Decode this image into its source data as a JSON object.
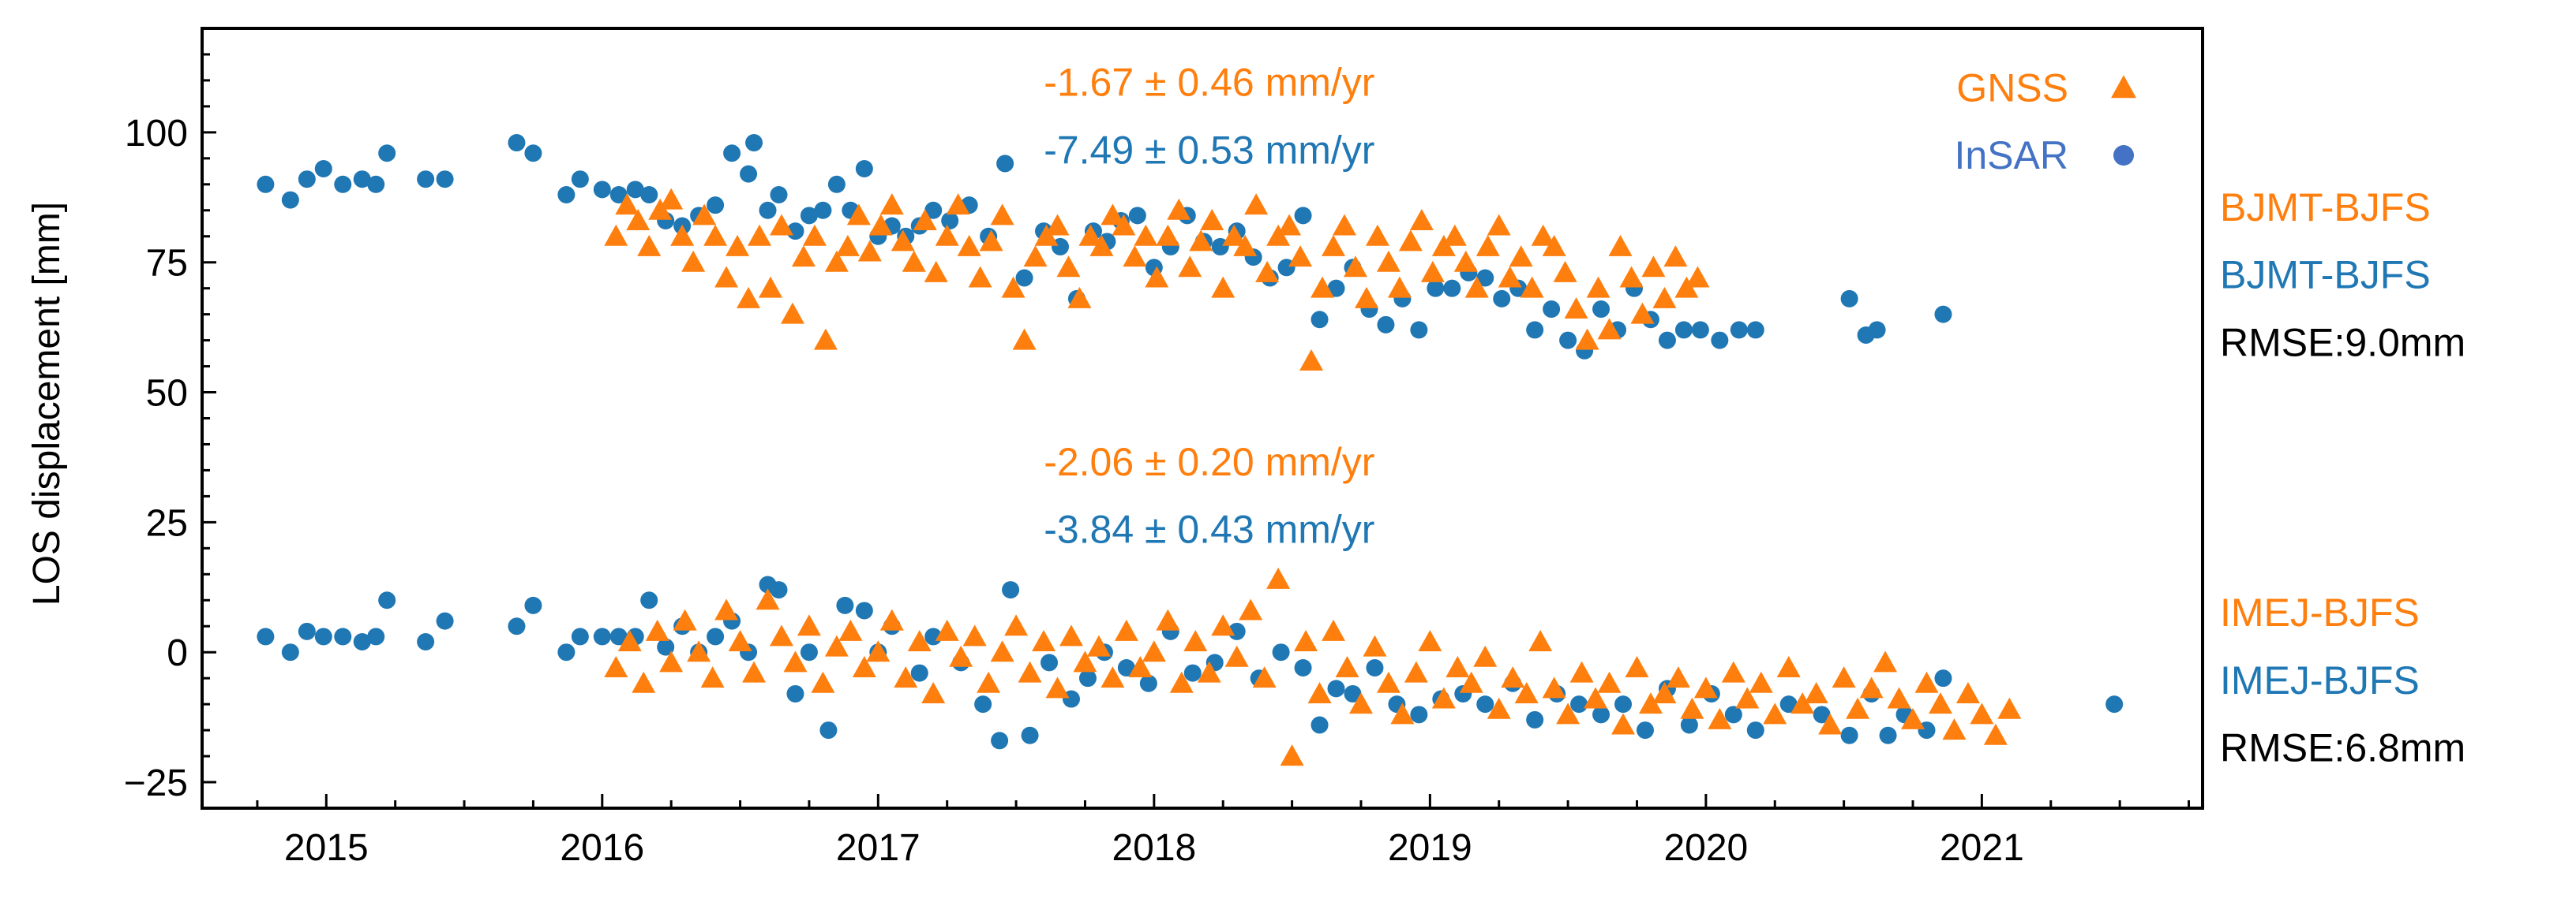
{
  "chart_data": {
    "type": "scatter",
    "title": "",
    "xlabel": "",
    "ylabel": "LOS displacement [mm]",
    "xlim": [
      2014.55,
      2021.8
    ],
    "ylim": [
      -30,
      120
    ],
    "xticks": [
      2015,
      2016,
      2017,
      2018,
      2019,
      2020,
      2021
    ],
    "xtick_labels": [
      "2015",
      "2016",
      "2017",
      "2018",
      "2019",
      "2020",
      "2021"
    ],
    "yticks": [
      -25,
      0,
      25,
      50,
      75,
      100
    ],
    "ytick_labels": [
      "−25",
      "0",
      "25",
      "50",
      "75",
      "100"
    ],
    "grid": false,
    "legend": {
      "placement": "top-right",
      "entries": [
        {
          "label": "GNSS",
          "marker": "triangle",
          "color": "#ff7f0e"
        },
        {
          "label": "InSAR",
          "marker": "circle",
          "color": "#4472c4"
        }
      ]
    },
    "rate_labels": [
      {
        "text": "-1.67 ± 0.46 mm/yr",
        "color": "#ff7f0e",
        "x": 2018.8,
        "y": 107
      },
      {
        "text": "-7.49 ± 0.53 mm/yr",
        "color": "#1f77b4",
        "x": 2018.8,
        "y": 94
      },
      {
        "text": "-2.06 ± 0.20 mm/yr",
        "color": "#ff7f0e",
        "x": 2018.8,
        "y": 34
      },
      {
        "text": "-3.84 ± 0.43 mm/yr",
        "color": "#1f77b4",
        "x": 2018.8,
        "y": 21
      }
    ],
    "side_labels": [
      {
        "text": "BJMT-BJFS",
        "color": "#ff7f0e",
        "y": 83
      },
      {
        "text": "BJMT-BJFS",
        "color": "#1f77b4",
        "y": 70
      },
      {
        "text": "RMSE:9.0mm",
        "color": "#000000",
        "y": 57
      },
      {
        "text": "IMEJ-BJFS",
        "color": "#ff7f0e",
        "y": 5
      },
      {
        "text": "IMEJ-BJFS",
        "color": "#1f77b4",
        "y": -8
      },
      {
        "text": "RMSE:6.8mm",
        "color": "#000000",
        "y": -21
      }
    ],
    "series": [
      {
        "name": "BJMT-BJFS InSAR",
        "marker": "circle",
        "color": "#1f77b4",
        "x": [
          2014.78,
          2014.87,
          2014.93,
          2014.99,
          2015.06,
          2015.13,
          2015.18,
          2015.22,
          2015.36,
          2015.43,
          2015.69,
          2015.75,
          2015.87,
          2015.92,
          2016.0,
          2016.06,
          2016.12,
          2016.17,
          2016.23,
          2016.29,
          2016.35,
          2016.41,
          2016.47,
          2016.53,
          2016.55,
          2016.6,
          2016.64,
          2016.7,
          2016.75,
          2016.8,
          2016.85,
          2016.9,
          2016.95,
          2017.0,
          2017.05,
          2017.1,
          2017.15,
          2017.2,
          2017.26,
          2017.33,
          2017.4,
          2017.46,
          2017.53,
          2017.6,
          2017.66,
          2017.72,
          2017.78,
          2017.83,
          2017.88,
          2017.94,
          2018.0,
          2018.06,
          2018.12,
          2018.18,
          2018.24,
          2018.3,
          2018.36,
          2018.42,
          2018.48,
          2018.54,
          2018.6,
          2018.66,
          2018.72,
          2018.78,
          2018.84,
          2018.9,
          2018.96,
          2019.02,
          2019.08,
          2019.14,
          2019.2,
          2019.26,
          2019.32,
          2019.38,
          2019.44,
          2019.5,
          2019.56,
          2019.62,
          2019.68,
          2019.74,
          2019.8,
          2019.86,
          2019.92,
          2019.98,
          2020.05,
          2020.12,
          2020.18,
          2020.52,
          2020.58,
          2020.62,
          2020.86
        ],
        "y": [
          90,
          87,
          91,
          93,
          90,
          91,
          90,
          96,
          91,
          91,
          98,
          96,
          88,
          91,
          89,
          88,
          89,
          88,
          83,
          82,
          84,
          86,
          96,
          92,
          98,
          85,
          88,
          81,
          84,
          85,
          90,
          85,
          93,
          80,
          82,
          80,
          82,
          85,
          83,
          86,
          80,
          94,
          72,
          81,
          78,
          68,
          81,
          79,
          83,
          84,
          74,
          78,
          84,
          79,
          78,
          81,
          76,
          72,
          74,
          84,
          64,
          70,
          74,
          66,
          63,
          68,
          62,
          70,
          70,
          73,
          72,
          68,
          70,
          62,
          66,
          60,
          58,
          66,
          62,
          70,
          64,
          60,
          62,
          62,
          60,
          62,
          62,
          68,
          61,
          62,
          65
        ]
      },
      {
        "name": "IMEJ-BJFS InSAR",
        "marker": "circle",
        "color": "#1f77b4",
        "x": [
          2014.78,
          2014.87,
          2014.93,
          2014.99,
          2015.06,
          2015.13,
          2015.18,
          2015.22,
          2015.36,
          2015.43,
          2015.69,
          2015.75,
          2015.87,
          2015.92,
          2016.0,
          2016.06,
          2016.12,
          2016.17,
          2016.23,
          2016.29,
          2016.35,
          2016.41,
          2016.47,
          2016.53,
          2016.6,
          2016.64,
          2016.7,
          2016.75,
          2016.82,
          2016.88,
          2016.95,
          2017.0,
          2017.05,
          2017.15,
          2017.2,
          2017.3,
          2017.38,
          2017.44,
          2017.48,
          2017.55,
          2017.62,
          2017.7,
          2017.76,
          2017.82,
          2017.9,
          2017.98,
          2018.06,
          2018.14,
          2018.22,
          2018.3,
          2018.38,
          2018.46,
          2018.54,
          2018.6,
          2018.66,
          2018.72,
          2018.8,
          2018.88,
          2018.96,
          2019.04,
          2019.12,
          2019.2,
          2019.3,
          2019.38,
          2019.46,
          2019.54,
          2019.62,
          2019.7,
          2019.78,
          2019.86,
          2019.94,
          2020.02,
          2020.1,
          2020.18,
          2020.3,
          2020.42,
          2020.52,
          2020.6,
          2020.66,
          2020.72,
          2020.8,
          2020.86,
          2021.48
        ],
        "y": [
          3,
          0,
          4,
          3,
          3,
          2,
          3,
          10,
          2,
          6,
          5,
          9,
          0,
          3,
          3,
          3,
          3,
          10,
          1,
          5,
          0,
          3,
          6,
          0,
          13,
          12,
          -8,
          0,
          -15,
          9,
          8,
          0,
          5,
          -4,
          3,
          -2,
          -10,
          -17,
          12,
          -16,
          -2,
          -9,
          -5,
          0,
          -3,
          -6,
          4,
          -4,
          -2,
          4,
          -5,
          0,
          -3,
          -14,
          -7,
          -8,
          -3,
          -10,
          -12,
          -9,
          -8,
          -10,
          -6,
          -13,
          -8,
          -10,
          -12,
          -10,
          -15,
          -7,
          -14,
          -8,
          -12,
          -15,
          -10,
          -12,
          -16,
          -8,
          -16,
          -12,
          -15,
          -5,
          -10
        ]
      },
      {
        "name": "BJMT-BJFS GNSS",
        "marker": "triangle",
        "color": "#ff7f0e",
        "x": [
          2016.05,
          2016.09,
          2016.13,
          2016.17,
          2016.21,
          2016.25,
          2016.29,
          2016.33,
          2016.37,
          2016.41,
          2016.45,
          2016.49,
          2016.53,
          2016.57,
          2016.61,
          2016.65,
          2016.69,
          2016.73,
          2016.77,
          2016.81,
          2016.85,
          2016.89,
          2016.93,
          2016.97,
          2017.01,
          2017.05,
          2017.09,
          2017.13,
          2017.17,
          2017.21,
          2017.25,
          2017.29,
          2017.33,
          2017.37,
          2017.41,
          2017.45,
          2017.49,
          2017.53,
          2017.57,
          2017.61,
          2017.65,
          2017.69,
          2017.73,
          2017.77,
          2017.81,
          2017.85,
          2017.89,
          2017.93,
          2017.97,
          2018.01,
          2018.05,
          2018.09,
          2018.13,
          2018.17,
          2018.21,
          2018.25,
          2018.29,
          2018.33,
          2018.37,
          2018.41,
          2018.45,
          2018.49,
          2018.53,
          2018.57,
          2018.61,
          2018.65,
          2018.69,
          2018.73,
          2018.77,
          2018.81,
          2018.85,
          2018.89,
          2018.93,
          2018.97,
          2019.01,
          2019.05,
          2019.09,
          2019.13,
          2019.17,
          2019.21,
          2019.25,
          2019.29,
          2019.33,
          2019.37,
          2019.41,
          2019.45,
          2019.49,
          2019.53,
          2019.57,
          2019.61,
          2019.65,
          2019.69,
          2019.73,
          2019.77,
          2019.81,
          2019.85,
          2019.89,
          2019.93,
          2019.97
        ],
        "y": [
          80,
          86,
          83,
          78,
          85,
          87,
          80,
          75,
          84,
          80,
          72,
          78,
          68,
          80,
          70,
          82,
          65,
          76,
          80,
          60,
          75,
          78,
          84,
          77,
          82,
          86,
          79,
          75,
          83,
          73,
          80,
          86,
          78,
          72,
          79,
          84,
          70,
          60,
          76,
          80,
          82,
          74,
          68,
          80,
          78,
          84,
          82,
          76,
          80,
          72,
          80,
          85,
          74,
          79,
          83,
          70,
          80,
          78,
          86,
          73,
          80,
          82,
          76,
          56,
          70,
          78,
          82,
          74,
          68,
          80,
          75,
          70,
          79,
          83,
          73,
          78,
          80,
          75,
          70,
          78,
          82,
          72,
          76,
          70,
          80,
          78,
          73,
          66,
          60,
          70,
          62,
          78,
          72,
          65,
          74,
          68,
          76,
          70,
          72
        ]
      },
      {
        "name": "IMEJ-BJFS GNSS",
        "marker": "triangle",
        "color": "#ff7f0e",
        "x": [
          2016.05,
          2016.1,
          2016.15,
          2016.2,
          2016.25,
          2016.3,
          2016.35,
          2016.4,
          2016.45,
          2016.5,
          2016.55,
          2016.6,
          2016.65,
          2016.7,
          2016.75,
          2016.8,
          2016.85,
          2016.9,
          2016.95,
          2017.0,
          2017.05,
          2017.1,
          2017.15,
          2017.2,
          2017.25,
          2017.3,
          2017.35,
          2017.4,
          2017.45,
          2017.5,
          2017.55,
          2017.6,
          2017.65,
          2017.7,
          2017.75,
          2017.8,
          2017.85,
          2017.9,
          2017.95,
          2018.0,
          2018.05,
          2018.1,
          2018.15,
          2018.2,
          2018.25,
          2018.3,
          2018.35,
          2018.4,
          2018.45,
          2018.5,
          2018.55,
          2018.6,
          2018.65,
          2018.7,
          2018.75,
          2018.8,
          2018.85,
          2018.9,
          2018.95,
          2019.0,
          2019.05,
          2019.1,
          2019.15,
          2019.2,
          2019.25,
          2019.3,
          2019.35,
          2019.4,
          2019.45,
          2019.5,
          2019.55,
          2019.6,
          2019.65,
          2019.7,
          2019.75,
          2019.8,
          2019.85,
          2019.9,
          2019.95,
          2020.0,
          2020.05,
          2020.1,
          2020.15,
          2020.2,
          2020.25,
          2020.3,
          2020.35,
          2020.4,
          2020.45,
          2020.5,
          2020.55,
          2020.6,
          2020.65,
          2020.7,
          2020.75,
          2020.8,
          2020.85,
          2020.9,
          2020.95,
          2021.0,
          2021.05,
          2021.1
        ],
        "y": [
          -3,
          2,
          -6,
          4,
          -2,
          6,
          0,
          -5,
          8,
          2,
          -4,
          10,
          3,
          -2,
          5,
          -6,
          1,
          4,
          -3,
          0,
          6,
          -5,
          2,
          -8,
          4,
          -1,
          3,
          -6,
          0,
          5,
          -4,
          2,
          -7,
          3,
          -2,
          1,
          -5,
          4,
          -3,
          0,
          6,
          -6,
          2,
          -4,
          5,
          -1,
          8,
          -5,
          14,
          -20,
          2,
          -8,
          4,
          -3,
          -10,
          1,
          -6,
          -12,
          -4,
          2,
          -9,
          -3,
          -6,
          -1,
          -11,
          -5,
          -8,
          2,
          -7,
          -12,
          -4,
          -9,
          -6,
          -14,
          -3,
          -10,
          -8,
          -5,
          -11,
          -7,
          -13,
          -4,
          -9,
          -6,
          -12,
          -3,
          -10,
          -8,
          -14,
          -5,
          -11,
          -7,
          -2,
          -9,
          -13,
          -6,
          -10,
          -15,
          -8,
          -12,
          -16,
          -11
        ]
      }
    ]
  }
}
